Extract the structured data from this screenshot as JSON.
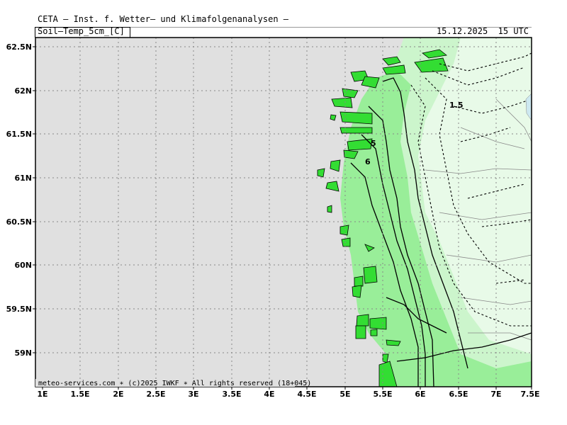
{
  "header": {
    "title": "CETA – Inst. f. Wetter– und Klimafolgenanalysen –",
    "parameter": "Soil–Temp_5cm_[C]",
    "datetime": "15.12.2025  15 UTC"
  },
  "footer": {
    "credit": "meteo-services.com ∗ (c)2025 IWKF ∗ All rights reserved (18+045)"
  },
  "axes": {
    "x_ticks": [
      "1E",
      "1.5E",
      "2E",
      "2.5E",
      "3E",
      "3.5E",
      "4E",
      "4.5E",
      "5E",
      "5.5E",
      "6E",
      "6.5E",
      "7E",
      "7.5E"
    ],
    "y_ticks": [
      "62.5N",
      "62N",
      "61.5N",
      "61N",
      "60.5N",
      "60N",
      "59.5N",
      "59N"
    ]
  },
  "contour_labels": [
    "1.5",
    "5",
    "6"
  ],
  "colors": {
    "sea": "#e0e0e0",
    "land_bright": "#33dd33",
    "land_mid": "#99ee99",
    "land_light": "#ccf5cc",
    "land_pale": "#e8fae8",
    "grid": "#888888"
  }
}
